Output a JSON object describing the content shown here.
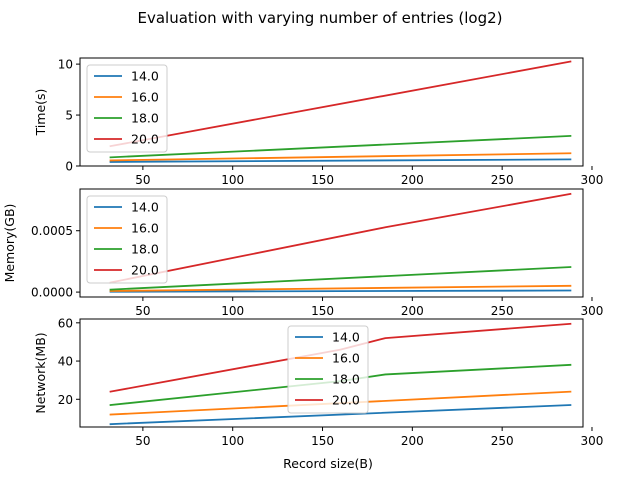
{
  "figure": {
    "title": "Evaluation with varying number of entries (log2)",
    "xlabel": "Record size(B)"
  },
  "colors": {
    "14.0": "#1f77b4",
    "16.0": "#ff7f0e",
    "18.0": "#2ca02c",
    "20.0": "#d62728"
  },
  "chart_data": [
    {
      "type": "line",
      "title": "",
      "xlabel": "",
      "ylabel": "Time(s)",
      "xlim": [
        15,
        295
      ],
      "ylim": [
        0,
        10.6
      ],
      "xticks": [
        50,
        100,
        150,
        200,
        250,
        300
      ],
      "xtick_labels": [
        "50",
        "100",
        "150",
        "200",
        "250",
        "300"
      ],
      "yticks": [
        0,
        5,
        10
      ],
      "ytick_labels": [
        "0",
        "5",
        "10"
      ],
      "legend": "upper-left",
      "grid": false,
      "series": [
        {
          "name": "14.0",
          "x": [
            32,
            288
          ],
          "y": [
            0.4,
            0.65
          ]
        },
        {
          "name": "16.0",
          "x": [
            32,
            288
          ],
          "y": [
            0.55,
            1.25
          ]
        },
        {
          "name": "18.0",
          "x": [
            32,
            288
          ],
          "y": [
            0.85,
            2.95
          ]
        },
        {
          "name": "20.0",
          "x": [
            32,
            288
          ],
          "y": [
            1.95,
            10.25
          ]
        }
      ]
    },
    {
      "type": "line",
      "title": "",
      "xlabel": "",
      "ylabel": "Memory(GB)",
      "xlim": [
        15,
        295
      ],
      "ylim": [
        -4e-05,
        0.00084
      ],
      "xticks": [
        50,
        100,
        150,
        200,
        250,
        300
      ],
      "xtick_labels": [
        "50",
        "100",
        "150",
        "200",
        "250",
        "300"
      ],
      "yticks": [
        0,
        0.0005
      ],
      "ytick_labels": [
        "0.0000",
        "0.0005"
      ],
      "legend": "upper-left",
      "grid": false,
      "series": [
        {
          "name": "14.0",
          "x": [
            32,
            288
          ],
          "y": [
            3e-06,
            1.3e-05
          ]
        },
        {
          "name": "16.0",
          "x": [
            32,
            288
          ],
          "y": [
            9e-06,
            5.1e-05
          ]
        },
        {
          "name": "18.0",
          "x": [
            32,
            288
          ],
          "y": [
            2e-05,
            0.000204
          ]
        },
        {
          "name": "20.0",
          "x": [
            32,
            185,
            288
          ],
          "y": [
            7.8e-05,
            0.000528,
            0.0008
          ]
        }
      ]
    },
    {
      "type": "line",
      "title": "",
      "xlabel": "Record size(B)",
      "ylabel": "Network(MB)",
      "xlim": [
        15,
        295
      ],
      "ylim": [
        5.5,
        62
      ],
      "xticks": [
        50,
        100,
        150,
        200,
        250,
        300
      ],
      "xtick_labels": [
        "50",
        "100",
        "150",
        "200",
        "250",
        "300"
      ],
      "yticks": [
        20,
        40,
        60
      ],
      "ytick_labels": [
        "20",
        "40",
        "60"
      ],
      "legend": "upper-center",
      "grid": false,
      "series": [
        {
          "name": "14.0",
          "x": [
            32,
            288
          ],
          "y": [
            7,
            17
          ]
        },
        {
          "name": "16.0",
          "x": [
            32,
            288
          ],
          "y": [
            12,
            24
          ]
        },
        {
          "name": "18.0",
          "x": [
            32,
            160,
            185,
            288
          ],
          "y": [
            17,
            29.5,
            33,
            38
          ]
        },
        {
          "name": "20.0",
          "x": [
            32,
            160,
            185,
            288
          ],
          "y": [
            24,
            46,
            52,
            59.5
          ]
        }
      ]
    }
  ]
}
